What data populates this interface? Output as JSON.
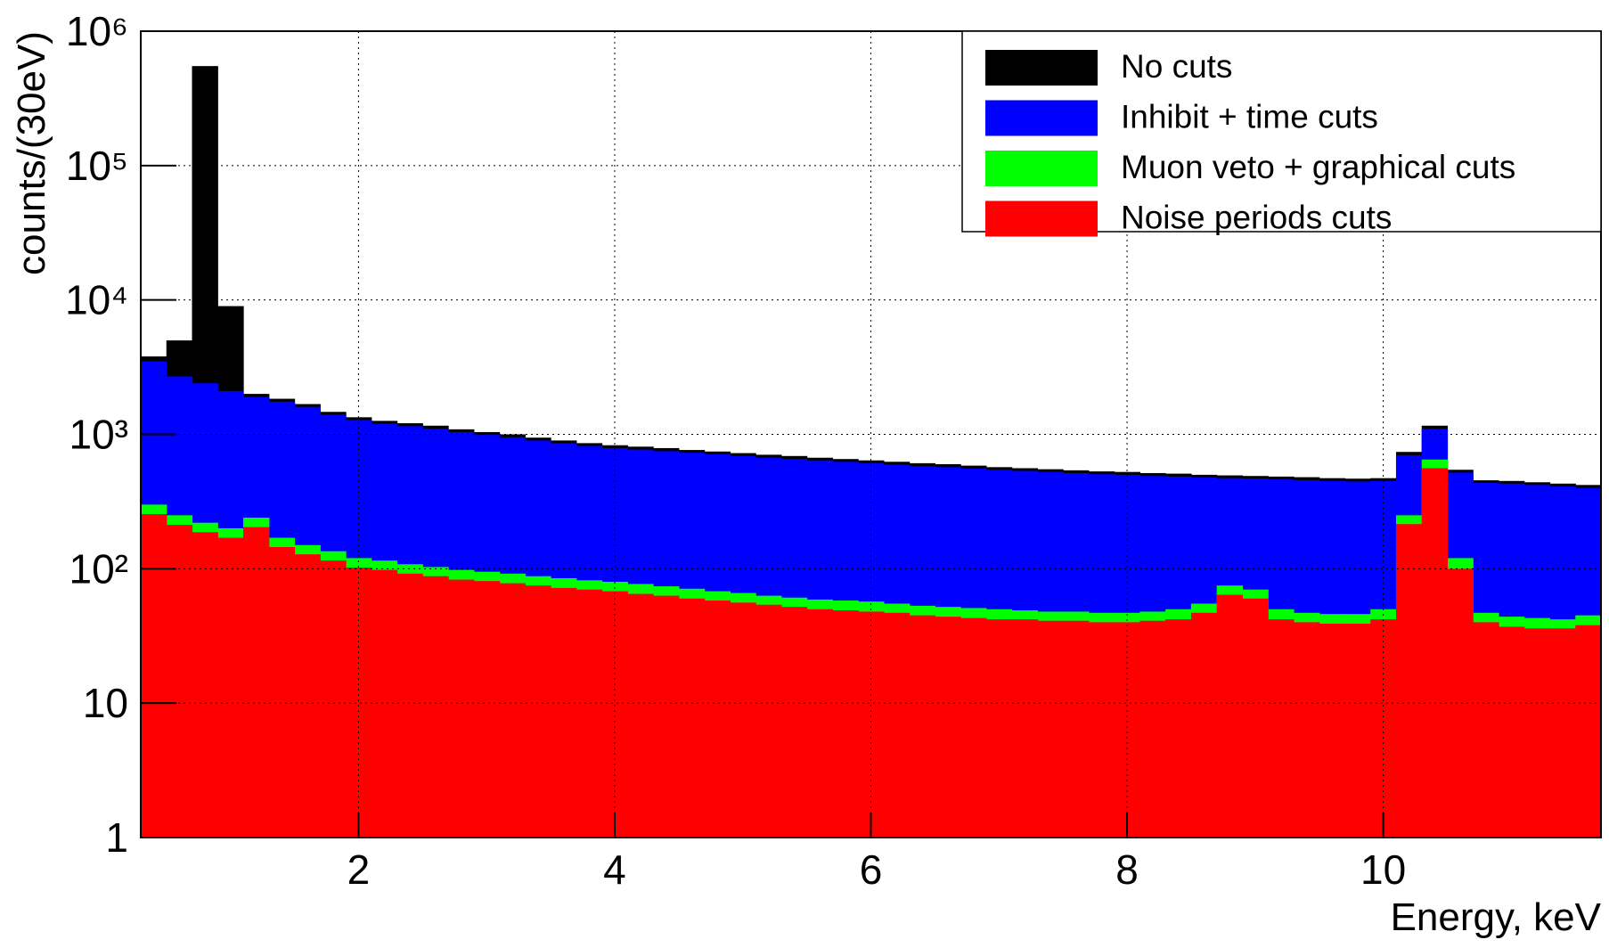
{
  "chart_data": {
    "type": "histogram",
    "x_label": "Energy, keV",
    "y_label": "counts/(30eV)",
    "log_y": true,
    "grid": true,
    "legend": "top-right",
    "xlim": [
      0.3,
      11.7
    ],
    "ylim": [
      1,
      1000000
    ],
    "xticks": [
      2,
      4,
      6,
      8,
      10
    ],
    "yticks": [
      1,
      10,
      {
        "value": 100,
        "label": "10²"
      },
      {
        "value": 1000,
        "label": "10³"
      },
      {
        "value": 10000,
        "label": "10⁴"
      },
      {
        "value": 100000,
        "label": "10⁵"
      },
      {
        "value": 1000000,
        "label": "10⁶"
      }
    ],
    "bins": [
      0.3,
      0.5,
      0.7,
      0.9,
      1.1,
      1.3,
      1.5,
      1.7,
      1.9,
      2.1,
      2.3,
      2.5,
      2.7,
      2.9,
      3.1,
      3.3,
      3.5,
      3.7,
      3.9,
      4.1,
      4.3,
      4.5,
      4.7,
      4.9,
      5.1,
      5.3,
      5.5,
      5.7,
      5.9,
      6.1,
      6.3,
      6.5,
      6.7,
      6.9,
      7.1,
      7.3,
      7.5,
      7.7,
      7.9,
      8.1,
      8.3,
      8.5,
      8.7,
      8.9,
      9.1,
      9.3,
      9.5,
      9.7,
      9.9,
      10.1,
      10.3,
      10.5,
      10.7,
      10.9,
      11.1,
      11.3,
      11.5,
      11.7
    ],
    "series": [
      {
        "name": "No cuts",
        "color": "#000000",
        "values": [
          3800,
          5000,
          550000,
          9000,
          2000,
          1840,
          1680,
          1470,
          1340,
          1260,
          1210,
          1160,
          1090,
          1040,
          1000,
          945,
          900,
          860,
          830,
          810,
          790,
          765,
          745,
          725,
          705,
          690,
          670,
          655,
          640,
          625,
          610,
          600,
          585,
          570,
          560,
          550,
          540,
          530,
          525,
          515,
          510,
          500,
          495,
          490,
          485,
          480,
          472,
          468,
          472,
          740,
          1160,
          545,
          455,
          450,
          440,
          430,
          420
        ]
      },
      {
        "name": "Inhibit + time cuts",
        "color": "#0000ff",
        "values": [
          3500,
          2700,
          2400,
          2100,
          1900,
          1750,
          1600,
          1400,
          1280,
          1200,
          1150,
          1100,
          1040,
          990,
          950,
          900,
          860,
          820,
          790,
          770,
          750,
          730,
          710,
          690,
          670,
          655,
          640,
          625,
          610,
          595,
          580,
          570,
          555,
          545,
          535,
          525,
          515,
          505,
          500,
          490,
          485,
          478,
          472,
          468,
          462,
          456,
          450,
          446,
          450,
          700,
          1100,
          520,
          435,
          430,
          420,
          410,
          400
        ]
      },
      {
        "name": "Muon veto + graphical cuts",
        "color": "#00ff00",
        "values": [
          300,
          250,
          220,
          200,
          240,
          170,
          150,
          135,
          120,
          115,
          108,
          103,
          98,
          95,
          92,
          88,
          85,
          82,
          80,
          77,
          74,
          71,
          68,
          66,
          63,
          61,
          59,
          58,
          57,
          55,
          53,
          52,
          51,
          50,
          49,
          48,
          48,
          47,
          47,
          48,
          50,
          55,
          75,
          70,
          50,
          47,
          46,
          46,
          50,
          250,
          650,
          120,
          47,
          44,
          43,
          42,
          45
        ]
      },
      {
        "name": "Noise periods cuts",
        "color": "#ff0000",
        "values": [
          255,
          212,
          187,
          170,
          204,
          145,
          128,
          115,
          102,
          98,
          92,
          88,
          83,
          81,
          78,
          75,
          72,
          70,
          68,
          65,
          63,
          60,
          58,
          56,
          54,
          52,
          50,
          49,
          48,
          47,
          45,
          44,
          43,
          42,
          42,
          41,
          41,
          40,
          40,
          41,
          42,
          47,
          64,
          60,
          42,
          40,
          39,
          39,
          42,
          215,
          560,
          100,
          40,
          37,
          36,
          36,
          38
        ]
      }
    ]
  }
}
